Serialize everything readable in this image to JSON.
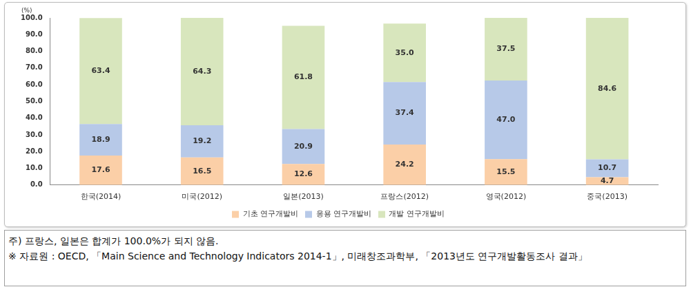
{
  "chart_data": {
    "type": "bar",
    "y_label": "(%)",
    "categories": [
      "한국(2014)",
      "미국(2012)",
      "일본(2013)",
      "프랑스(2012)",
      "영국(2012)",
      "중국(2013)"
    ],
    "series": [
      {
        "name": "기초 연구개발비",
        "color": "#fbcfa7",
        "values": [
          17.6,
          16.5,
          12.6,
          24.2,
          15.5,
          4.7
        ],
        "value_labels": [
          "17.6",
          "16.5",
          "12.6",
          "24.2",
          "15.5",
          "4.7"
        ]
      },
      {
        "name": "응용 연구개발비",
        "color": "#b7c9e8",
        "values": [
          18.9,
          19.2,
          20.9,
          37.4,
          47.0,
          10.7
        ],
        "value_labels": [
          "18.9",
          "19.2",
          "20.9",
          "37.4",
          "47.0",
          "10.7"
        ]
      },
      {
        "name": "개발 연구개발비",
        "color": "#d8e6bd",
        "values": [
          63.4,
          64.3,
          61.8,
          35.0,
          37.5,
          84.6
        ],
        "value_labels": [
          "63.4",
          "64.3",
          "61.8",
          "35.0",
          "37.5",
          "84.6"
        ]
      }
    ],
    "stacked": true,
    "data_labels": true,
    "legend": "bottom",
    "grid": false,
    "ylim": [
      0,
      100
    ],
    "yticks": [
      {
        "value": 0,
        "label": "0.0"
      },
      {
        "value": 10,
        "label": "10.0"
      },
      {
        "value": 20,
        "label": "20.0"
      },
      {
        "value": 30,
        "label": "30.0"
      },
      {
        "value": 40,
        "label": "40.0"
      },
      {
        "value": 50,
        "label": "50.0"
      },
      {
        "value": 60,
        "label": "60.0"
      },
      {
        "value": 70,
        "label": "70.0"
      },
      {
        "value": 80,
        "label": "80.0"
      },
      {
        "value": 90,
        "label": "90.0"
      },
      {
        "value": 100,
        "label": "100.0"
      }
    ],
    "annotations": [
      "주) 프랑스, 일본은 합계가 100.0%가 되지 않음.",
      "※ 자료원 : OECD, 「Main Science and Technology Indicators 2014-1」, 미래창조과학부, 「2013년도 연구개발활동조사 결과」"
    ]
  }
}
